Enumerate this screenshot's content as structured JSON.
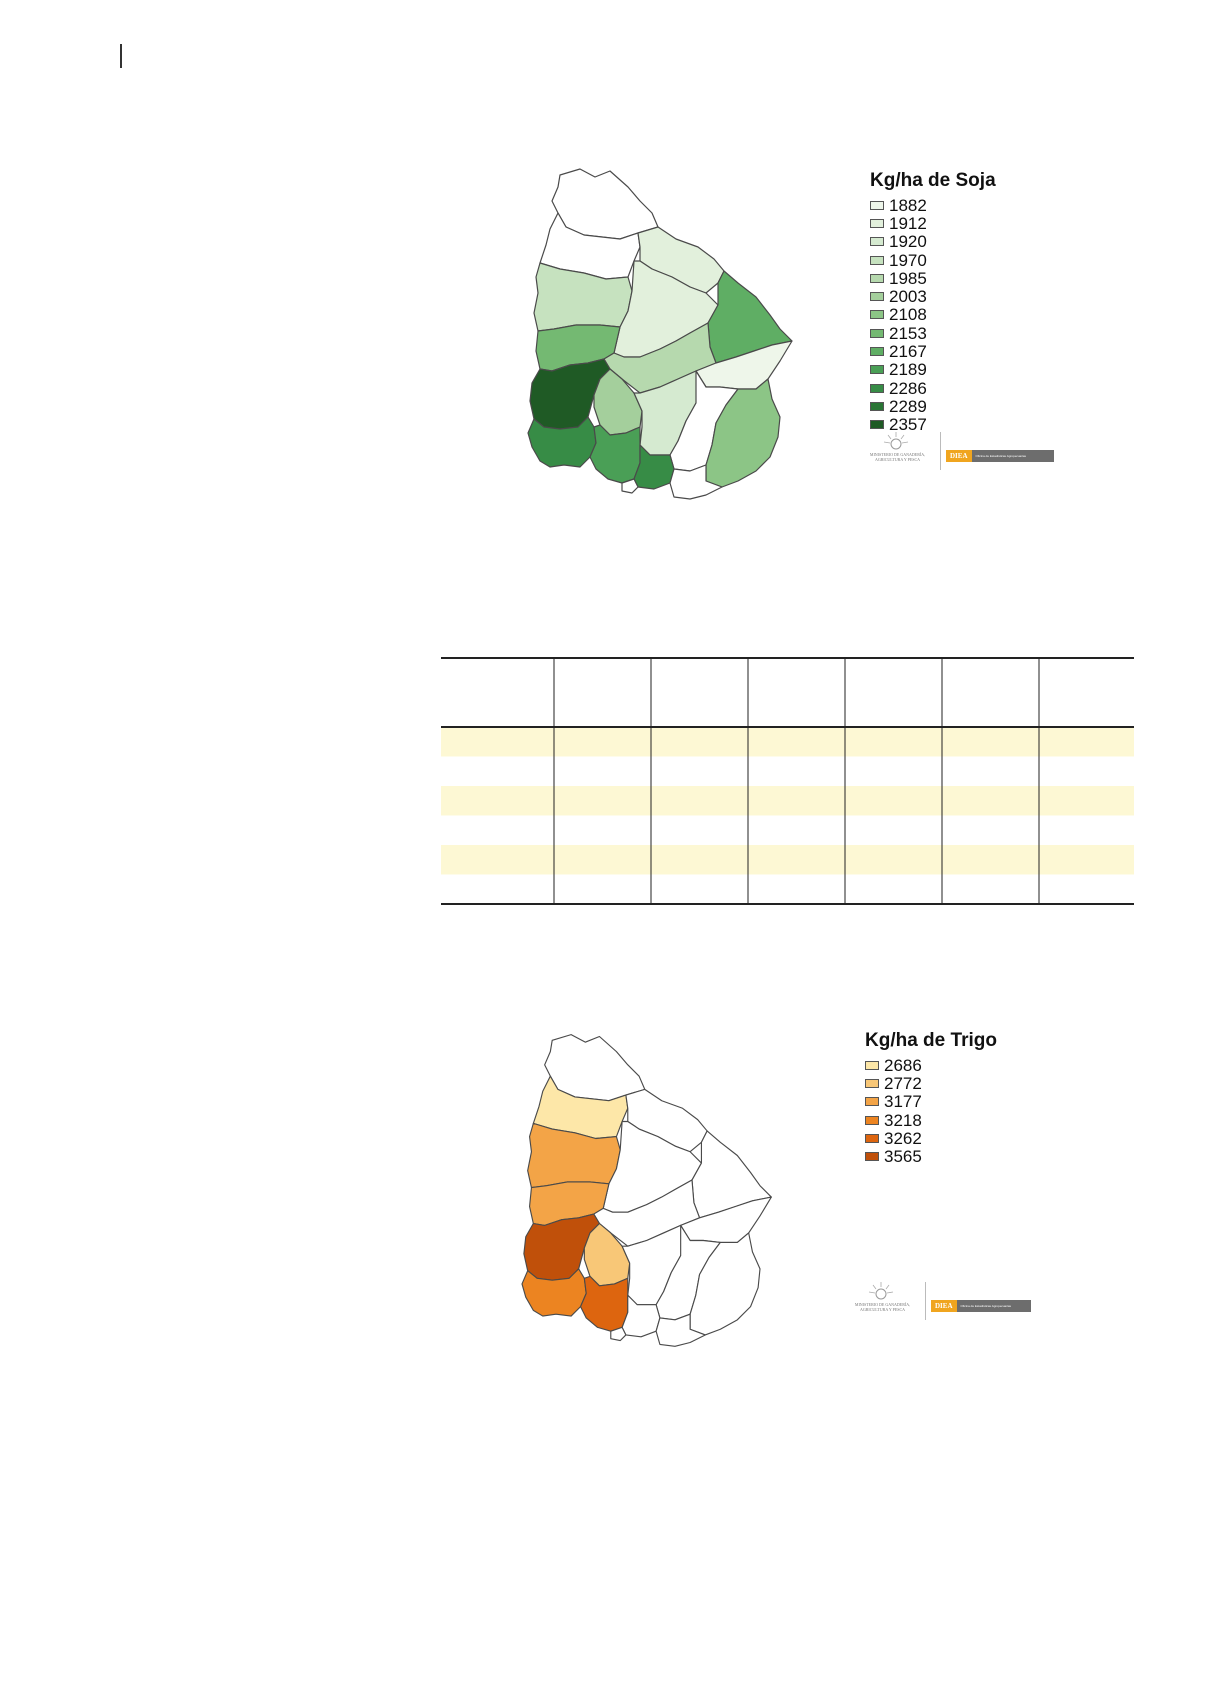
{
  "map_soja": {
    "legend_title": "Kg/ha de Soja",
    "legend": [
      {
        "label": "1882",
        "color": "#eef6ea"
      },
      {
        "label": "1912",
        "color": "#e2f0dc"
      },
      {
        "label": "1920",
        "color": "#d5ead0"
      },
      {
        "label": "1970",
        "color": "#c6e2bf"
      },
      {
        "label": "1985",
        "color": "#b6d9ae"
      },
      {
        "label": "2003",
        "color": "#a4cf9c"
      },
      {
        "label": "2108",
        "color": "#8cc586"
      },
      {
        "label": "2153",
        "color": "#74b972"
      },
      {
        "label": "2167",
        "color": "#5fae64"
      },
      {
        "label": "2189",
        "color": "#4a9f56"
      },
      {
        "label": "2286",
        "color": "#378c46"
      },
      {
        "label": "2289",
        "color": "#2a7535"
      },
      {
        "label": "2357",
        "color": "#1f5a25"
      }
    ],
    "logo_ministry": "MINISTERIO DE GANADERÍA, AGRICULTURA Y PESCA",
    "logo_tag": "DIEA",
    "logo_bar_text": "Oficina de Estadísticas Agropecuarias"
  },
  "map_trigo": {
    "legend_title": "Kg/ha de Trigo",
    "legend": [
      {
        "label": "2686",
        "color": "#fde7a8"
      },
      {
        "label": "2772",
        "color": "#f8c777"
      },
      {
        "label": "3177",
        "color": "#f3a447"
      },
      {
        "label": "3218",
        "color": "#ec8421"
      },
      {
        "label": "3262",
        "color": "#dd650f"
      },
      {
        "label": "3565",
        "color": "#c0500a"
      }
    ],
    "logo_ministry": "MINISTERIO DE GANADERÍA, AGRICULTURA Y PESCA",
    "logo_tag": "DIEA",
    "logo_bar_text": "Oficina de Estadísticas Agropecuarias"
  },
  "table": {
    "columns": 7,
    "row_count": 6,
    "striped_rows": [
      0,
      2,
      4
    ],
    "stripe_color": "#fdf8d4"
  }
}
